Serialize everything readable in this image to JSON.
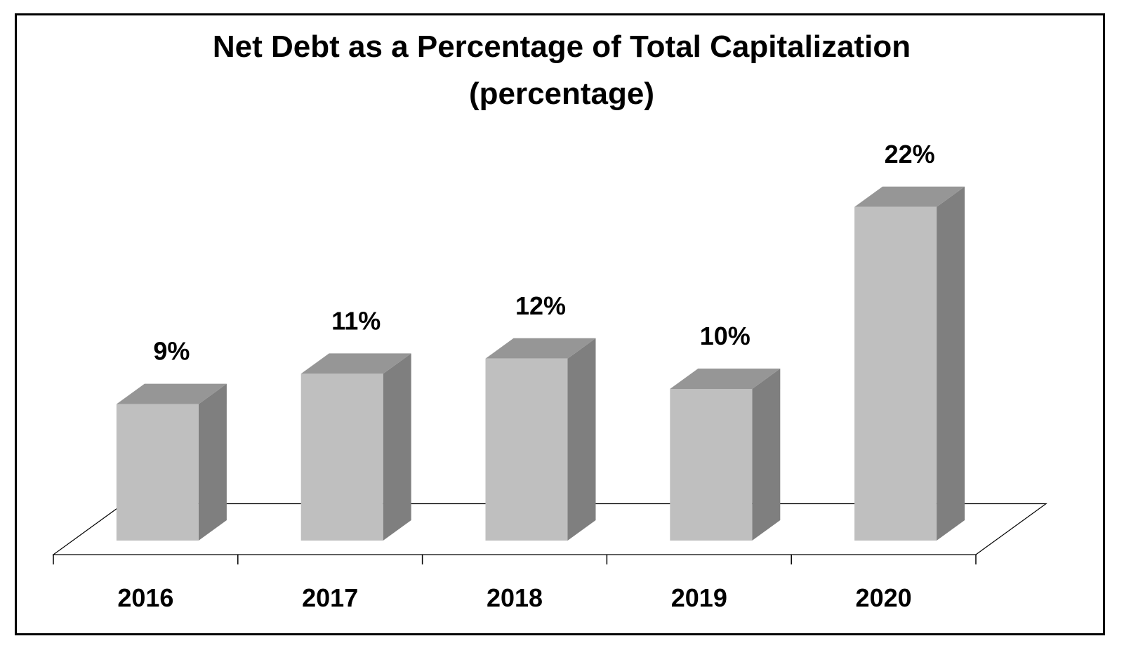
{
  "chart_data": {
    "type": "bar",
    "title": "Net Debt as a Percentage of Total Capitalization",
    "subtitle": "(percentage)",
    "categories": [
      "2016",
      "2017",
      "2018",
      "2019",
      "2020"
    ],
    "values": [
      9,
      11,
      12,
      10,
      22
    ],
    "data_labels": [
      "9%",
      "11%",
      "12%",
      "10%",
      "22%"
    ],
    "xlabel": "",
    "ylabel": "",
    "ylim": [
      0,
      24
    ],
    "grid": false,
    "legend": "none",
    "style": "3d-column",
    "colors": {
      "bar_front": "#bfbfbf",
      "bar_top": "#969696",
      "bar_side": "#7f7f7f",
      "outline": "#000000"
    }
  }
}
